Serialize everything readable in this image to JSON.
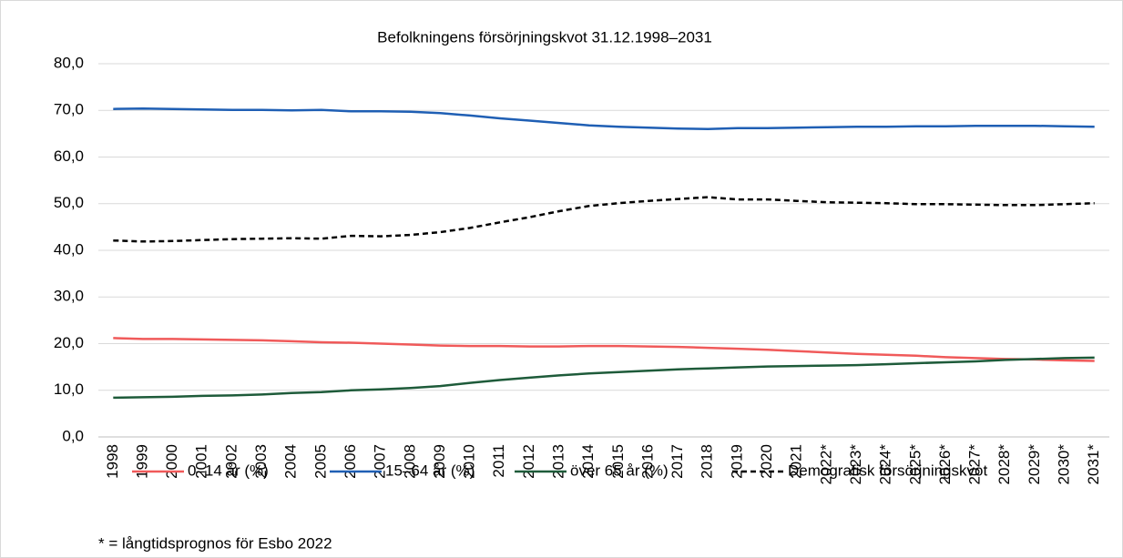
{
  "chart_data": {
    "type": "line",
    "title": "Befolkningens försörjningskvot 31.12.1998–2031",
    "note": "* = långtidsprognos för Esbo 2022",
    "categories": [
      "1998",
      "1999",
      "2000",
      "2001",
      "2002",
      "2003",
      "2004",
      "2005",
      "2006",
      "2007",
      "2008",
      "2009",
      "2010",
      "2011",
      "2012",
      "2013",
      "2014",
      "2015",
      "2016",
      "2017",
      "2018",
      "2019",
      "2020",
      "2021",
      "2022*",
      "2023*",
      "2024*",
      "2025*",
      "2026*",
      "2027*",
      "2028*",
      "2029*",
      "2030*",
      "2031*"
    ],
    "series": [
      {
        "name": "0–14 år (%)",
        "color": "#f05a5a",
        "dashed": false,
        "values": [
          21.2,
          21.0,
          21.0,
          20.9,
          20.8,
          20.7,
          20.5,
          20.3,
          20.2,
          20.0,
          19.8,
          19.6,
          19.5,
          19.5,
          19.4,
          19.4,
          19.5,
          19.5,
          19.4,
          19.3,
          19.1,
          18.9,
          18.7,
          18.4,
          18.1,
          17.8,
          17.6,
          17.4,
          17.1,
          16.9,
          16.7,
          16.6,
          16.4,
          16.3
        ]
      },
      {
        "name": "15–64 år (%)",
        "color": "#1f5fb4",
        "dashed": false,
        "values": [
          70.3,
          70.4,
          70.3,
          70.2,
          70.1,
          70.1,
          70.0,
          70.1,
          69.8,
          69.8,
          69.7,
          69.4,
          68.9,
          68.3,
          67.8,
          67.3,
          66.8,
          66.5,
          66.3,
          66.1,
          66.0,
          66.2,
          66.2,
          66.3,
          66.4,
          66.5,
          66.5,
          66.6,
          66.6,
          66.7,
          66.7,
          66.7,
          66.6,
          66.5
        ]
      },
      {
        "name": "över 65 år (%)",
        "color": "#1e5b3a",
        "dashed": false,
        "values": [
          8.4,
          8.5,
          8.6,
          8.8,
          8.9,
          9.1,
          9.4,
          9.6,
          10.0,
          10.2,
          10.5,
          10.9,
          11.6,
          12.2,
          12.7,
          13.2,
          13.6,
          13.9,
          14.2,
          14.5,
          14.7,
          14.9,
          15.1,
          15.2,
          15.3,
          15.4,
          15.6,
          15.8,
          16.0,
          16.2,
          16.5,
          16.7,
          16.9,
          17.0
        ]
      },
      {
        "name": "Demografisk försörjningskvot",
        "color": "#000000",
        "dashed": true,
        "values": [
          42.1,
          41.9,
          42.0,
          42.2,
          42.4,
          42.5,
          42.6,
          42.5,
          43.1,
          43.0,
          43.3,
          43.9,
          44.8,
          46.0,
          47.1,
          48.4,
          49.5,
          50.1,
          50.6,
          51.0,
          51.4,
          50.9,
          50.9,
          50.6,
          50.3,
          50.2,
          50.1,
          49.9,
          49.9,
          49.8,
          49.7,
          49.7,
          49.9,
          50.1
        ]
      }
    ],
    "ylim": [
      0,
      80
    ],
    "yticks": [
      {
        "value": 0,
        "label": "0,0"
      },
      {
        "value": 10,
        "label": "10,0"
      },
      {
        "value": 20,
        "label": "20,0"
      },
      {
        "value": 30,
        "label": "30,0"
      },
      {
        "value": 40,
        "label": "40,0"
      },
      {
        "value": 50,
        "label": "50,0"
      },
      {
        "value": 60,
        "label": "60,0"
      },
      {
        "value": 70,
        "label": "70,0"
      },
      {
        "value": 80,
        "label": "80,0"
      }
    ],
    "grid": true
  }
}
